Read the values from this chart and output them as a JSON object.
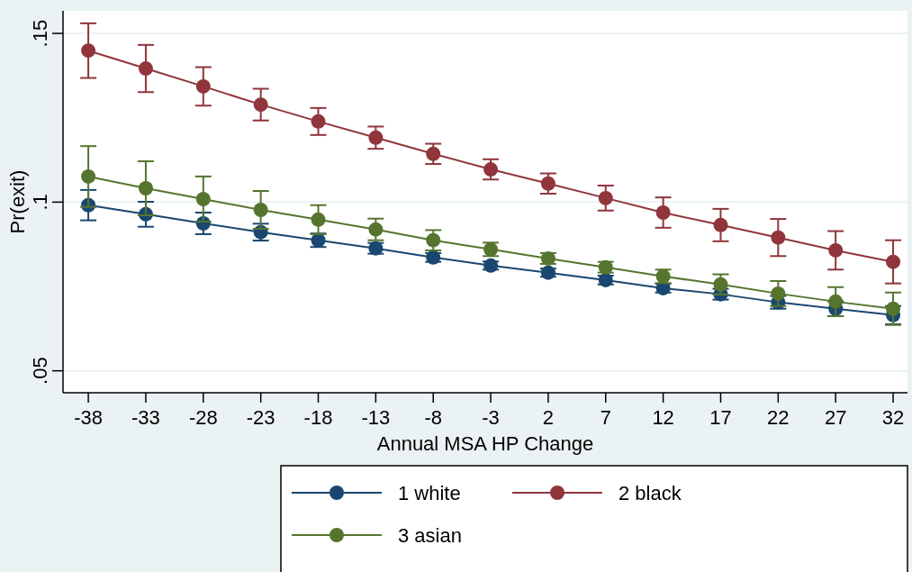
{
  "chart_data": {
    "type": "line",
    "xlabel": "Annual MSA HP Change",
    "ylabel": "Pr(exit)",
    "x": [
      -38,
      -33,
      -28,
      -23,
      -18,
      -13,
      -8,
      -3,
      2,
      7,
      12,
      17,
      22,
      27,
      32
    ],
    "xlim": [
      -40.2,
      33.25
    ],
    "xticks": [
      -38,
      -33,
      -28,
      -23,
      -18,
      -13,
      -8,
      -3,
      2,
      7,
      12,
      17,
      22,
      27,
      32
    ],
    "ylim": [
      0.0435,
      0.1567
    ],
    "yticks": [
      {
        "value": 0.05,
        "label": ".05"
      },
      {
        "value": 0.1,
        "label": ".1"
      },
      {
        "value": 0.15,
        "label": ".15"
      }
    ],
    "grid": "y",
    "legend": "bottom",
    "marker": "circle",
    "line_style": "solid",
    "series": [
      {
        "name": "1 white",
        "color": "#1a476f",
        "values": [
          0.0991,
          0.0964,
          0.0937,
          0.0911,
          0.0887,
          0.0863,
          0.0836,
          0.0812,
          0.0791,
          0.0769,
          0.0745,
          0.0727,
          0.0703,
          0.0684,
          0.0665
        ],
        "errors": [
          0.0045,
          0.0037,
          0.0032,
          0.0025,
          0.002,
          0.0016,
          0.0013,
          0.0012,
          0.0012,
          0.0013,
          0.0013,
          0.0016,
          0.0019,
          0.0022,
          0.0027
        ]
      },
      {
        "name": "2 black",
        "color": "#90353b",
        "values": [
          0.1449,
          0.1396,
          0.1343,
          0.1289,
          0.1239,
          0.1191,
          0.1143,
          0.1097,
          0.1055,
          0.1012,
          0.0969,
          0.0932,
          0.0895,
          0.0857,
          0.0823
        ],
        "errors": [
          0.0081,
          0.007,
          0.0057,
          0.0047,
          0.004,
          0.0033,
          0.003,
          0.003,
          0.003,
          0.0037,
          0.0045,
          0.0048,
          0.0055,
          0.0057,
          0.0064
        ]
      },
      {
        "name": "3 asian",
        "color": "#55752f",
        "values": [
          0.1076,
          0.1041,
          0.1009,
          0.0977,
          0.0948,
          0.0919,
          0.0887,
          0.086,
          0.0833,
          0.0807,
          0.078,
          0.0756,
          0.0729,
          0.0705,
          0.0684
        ],
        "errors": [
          0.009,
          0.008,
          0.0067,
          0.0056,
          0.0043,
          0.0032,
          0.003,
          0.002,
          0.0016,
          0.0016,
          0.002,
          0.003,
          0.0037,
          0.0043,
          0.0048
        ]
      }
    ]
  }
}
